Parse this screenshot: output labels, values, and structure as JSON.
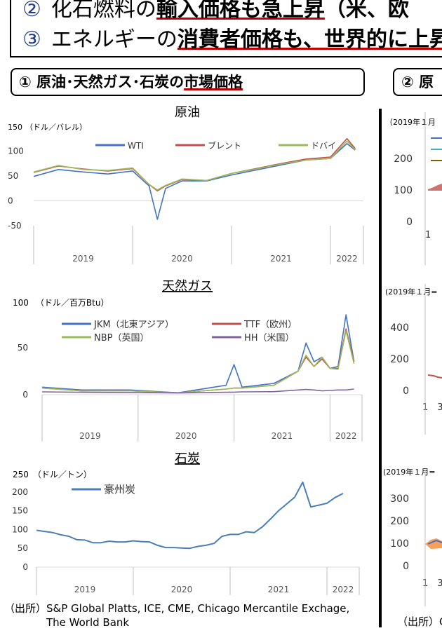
{
  "top": {
    "line2_circle": "②",
    "line2_plain": "化石燃料の",
    "line2_bold": "輸入価格も急上昇",
    "line2_rest": "（米、欧",
    "line3_circle": "③",
    "line3_plain": "エネルギーの",
    "line3_bold": "消費者価格も、世界的に上昇"
  },
  "left_panel": {
    "circle": "①",
    "title_plain": "原油･天然ガス･石炭の",
    "title_underlined": "市場価格"
  },
  "right_panel": {
    "circle": "②",
    "title": "原",
    "note_1": "（2019年１月",
    "note_2": "(2019年１月=",
    "note_3": "(2019年１月=",
    "ticks_1": [
      "200",
      "100",
      "0"
    ],
    "ticks_2": [
      "400",
      "200",
      "0"
    ],
    "ticks_3": [
      "300",
      "200",
      "100",
      "0"
    ],
    "xtick_1": "1",
    "xtick_2": "1　3",
    "xtick_3": "1　3",
    "source": "（出所）G"
  },
  "source_text": [
    "（出所）S&P Global Platts, ICE, CME, Chicago Mercantile Exchage,",
    "　　　　The World Bank"
  ],
  "chart_data": [
    {
      "type": "line",
      "title": "原油",
      "unit_label": "（ドル／バレル）",
      "ylim": [
        -50,
        150
      ],
      "yticks": [
        "150",
        "100",
        "50",
        "0",
        "-50"
      ],
      "x_year_labels": [
        "2019",
        "2020",
        "2021",
        "2022"
      ],
      "x": [
        "2019-01",
        "2019-04",
        "2019-07",
        "2019-10",
        "2020-01",
        "2020-03",
        "2020-04",
        "2020-05",
        "2020-07",
        "2020-10",
        "2021-01",
        "2021-04",
        "2021-07",
        "2021-10",
        "2022-01",
        "2022-03",
        "2022-04"
      ],
      "series": [
        {
          "name": "WTI",
          "color": "#4472c4",
          "values": [
            49,
            63,
            58,
            54,
            60,
            30,
            -37,
            25,
            40,
            40,
            52,
            62,
            72,
            82,
            85,
            115,
            102
          ]
        },
        {
          "name": "ブレント",
          "color": "#c0504d",
          "values": [
            57,
            70,
            64,
            60,
            65,
            33,
            20,
            30,
            43,
            41,
            55,
            65,
            75,
            84,
            88,
            125,
            105
          ]
        },
        {
          "name": "ドバイ",
          "color": "#9bbb59",
          "values": [
            58,
            71,
            63,
            61,
            66,
            33,
            22,
            31,
            44,
            41,
            55,
            64,
            74,
            82,
            85,
            120,
            103
          ]
        }
      ]
    },
    {
      "type": "line",
      "title": "天然ガス",
      "unit_label": "（ドル／百万Btu）",
      "ylim": [
        0,
        100
      ],
      "yticks": [
        "100",
        "50",
        "0"
      ],
      "x_year_labels": [
        "2019",
        "2020",
        "2021",
        "2022"
      ],
      "x": [
        "2019-01",
        "2019-06",
        "2019-12",
        "2020-06",
        "2020-12",
        "2021-01",
        "2021-02",
        "2021-06",
        "2021-09",
        "2021-10",
        "2021-11",
        "2021-12",
        "2022-01",
        "2022-02",
        "2022-03",
        "2022-04"
      ],
      "series": [
        {
          "name": "JKM（北東アジア）",
          "color": "#4472c4",
          "values": [
            8,
            5,
            5,
            2,
            10,
            32,
            8,
            12,
            25,
            55,
            35,
            40,
            28,
            30,
            85,
            35
          ]
        },
        {
          "name": "TTF（欧州）",
          "color": "#c0504d",
          "values": [
            7,
            4,
            4,
            2,
            6,
            7,
            7,
            10,
            25,
            40,
            30,
            38,
            28,
            28,
            70,
            35
          ]
        },
        {
          "name": "NBP（英国）",
          "color": "#9bbb59",
          "values": [
            7,
            4,
            4,
            2,
            6,
            7,
            7,
            10,
            25,
            42,
            30,
            40,
            28,
            27,
            68,
            33
          ]
        },
        {
          "name": "HH（米国）",
          "color": "#8064a2",
          "values": [
            3,
            2.5,
            2.3,
            1.8,
            2.5,
            2.7,
            3,
            3.2,
            5,
            5.5,
            5,
            4,
            4.5,
            5,
            5,
            6
          ]
        }
      ]
    },
    {
      "type": "line",
      "title": "石炭",
      "unit_label": "（ドル／トン）",
      "ylim": [
        0,
        250
      ],
      "yticks": [
        "250",
        "200",
        "150",
        "100",
        "50",
        "0"
      ],
      "x_year_labels": [
        "2019",
        "2020",
        "2021",
        "2022"
      ],
      "x": [
        "2019-01",
        "2019-02",
        "2019-03",
        "2019-04",
        "2019-05",
        "2019-06",
        "2019-07",
        "2019-08",
        "2019-09",
        "2019-10",
        "2019-11",
        "2019-12",
        "2020-01",
        "2020-02",
        "2020-03",
        "2020-04",
        "2020-05",
        "2020-06",
        "2020-07",
        "2020-08",
        "2020-09",
        "2020-10",
        "2020-11",
        "2020-12",
        "2021-01",
        "2021-02",
        "2021-03",
        "2021-04",
        "2021-05",
        "2021-06",
        "2021-07",
        "2021-08",
        "2021-09",
        "2021-10",
        "2021-11",
        "2021-12",
        "2022-01",
        "2022-02",
        "2022-03"
      ],
      "series": [
        {
          "name": "豪州炭",
          "color": "#4a7ebb",
          "values": [
            98,
            95,
            92,
            86,
            82,
            73,
            72,
            65,
            65,
            69,
            67,
            67,
            70,
            68,
            67,
            58,
            52,
            52,
            51,
            50,
            55,
            58,
            63,
            82,
            87,
            87,
            94,
            92,
            107,
            128,
            150,
            168,
            186,
            226,
            160,
            165,
            170,
            185,
            196
          ]
        }
      ]
    }
  ]
}
